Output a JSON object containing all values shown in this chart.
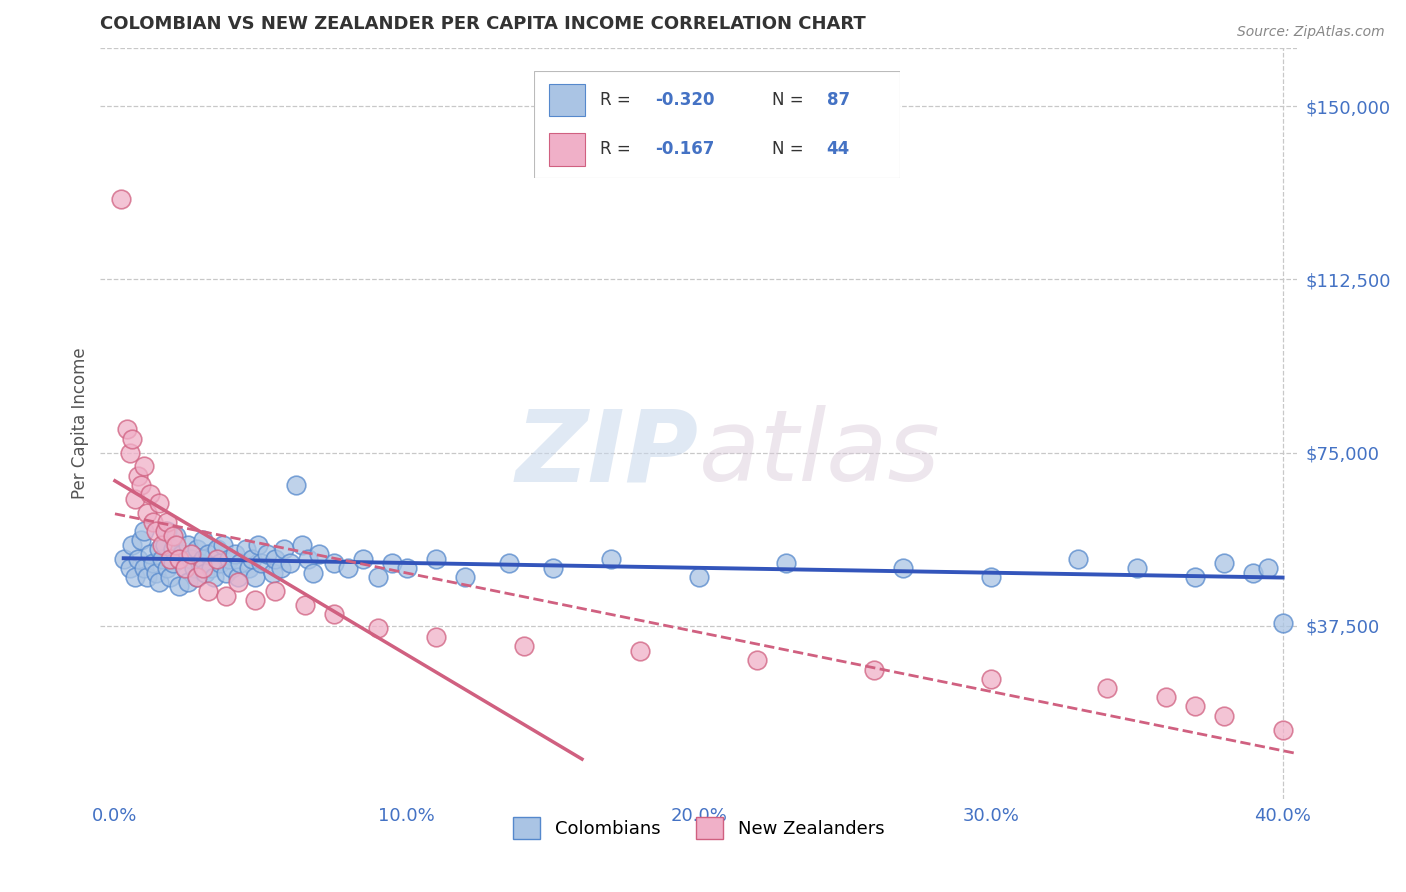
{
  "title": "COLOMBIAN VS NEW ZEALANDER PER CAPITA INCOME CORRELATION CHART",
  "source": "Source: ZipAtlas.com",
  "ylabel": "Per Capita Income",
  "xlim": [
    -0.005,
    0.405
  ],
  "ylim": [
    0,
    162500
  ],
  "yticks": [
    37500,
    75000,
    112500,
    150000
  ],
  "ytick_labels": [
    "$37,500",
    "$75,000",
    "$112,500",
    "$150,000"
  ],
  "xticks": [
    0.0,
    0.1,
    0.2,
    0.3,
    0.4
  ],
  "xtick_labels": [
    "0.0%",
    "10.0%",
    "20.0%",
    "30.0%",
    "40.0%"
  ],
  "background_color": "#ffffff",
  "grid_color": "#c8c8c8",
  "watermark_zip": "ZIP",
  "watermark_atlas": "atlas",
  "colombians_color": "#aac4e4",
  "colombians_edge_color": "#5588cc",
  "nz_color": "#f0b0c8",
  "nz_edge_color": "#d06080",
  "colombians_line_color": "#3355bb",
  "nz_line_color": "#d06080",
  "tick_color": "#4472c4",
  "title_color": "#333333",
  "axis_label_color": "#555555",
  "legend_r_color": "#4472c4",
  "legend1_r": "R = -0.320",
  "legend1_n": "N = 87",
  "legend2_r": "R = -0.167",
  "legend2_n": "N = 44",
  "colombians_x": [
    0.003,
    0.005,
    0.006,
    0.007,
    0.008,
    0.009,
    0.01,
    0.01,
    0.011,
    0.012,
    0.013,
    0.014,
    0.015,
    0.015,
    0.016,
    0.017,
    0.018,
    0.018,
    0.019,
    0.02,
    0.02,
    0.021,
    0.022,
    0.022,
    0.023,
    0.024,
    0.025,
    0.025,
    0.026,
    0.027,
    0.028,
    0.028,
    0.029,
    0.03,
    0.03,
    0.031,
    0.032,
    0.033,
    0.034,
    0.035,
    0.036,
    0.037,
    0.038,
    0.039,
    0.04,
    0.041,
    0.042,
    0.043,
    0.045,
    0.046,
    0.047,
    0.048,
    0.049,
    0.05,
    0.052,
    0.054,
    0.055,
    0.057,
    0.058,
    0.06,
    0.062,
    0.064,
    0.066,
    0.068,
    0.07,
    0.075,
    0.08,
    0.085,
    0.09,
    0.095,
    0.1,
    0.11,
    0.12,
    0.135,
    0.15,
    0.17,
    0.2,
    0.23,
    0.27,
    0.3,
    0.33,
    0.35,
    0.37,
    0.38,
    0.39,
    0.395,
    0.4
  ],
  "colombians_y": [
    52000,
    50000,
    55000,
    48000,
    52000,
    56000,
    50000,
    58000,
    48000,
    53000,
    51000,
    49000,
    54000,
    47000,
    52000,
    55000,
    50000,
    58000,
    48000,
    54000,
    51000,
    57000,
    52000,
    46000,
    53000,
    50000,
    55000,
    47000,
    52000,
    50000,
    54000,
    48000,
    51000,
    52000,
    56000,
    49000,
    53000,
    50000,
    48000,
    54000,
    51000,
    55000,
    49000,
    52000,
    50000,
    53000,
    48000,
    51000,
    54000,
    50000,
    52000,
    48000,
    55000,
    51000,
    53000,
    49000,
    52000,
    50000,
    54000,
    51000,
    68000,
    55000,
    52000,
    49000,
    53000,
    51000,
    50000,
    52000,
    48000,
    51000,
    50000,
    52000,
    48000,
    51000,
    50000,
    52000,
    48000,
    51000,
    50000,
    48000,
    52000,
    50000,
    48000,
    51000,
    49000,
    50000,
    38000
  ],
  "nz_x": [
    0.002,
    0.004,
    0.005,
    0.006,
    0.007,
    0.008,
    0.009,
    0.01,
    0.011,
    0.012,
    0.013,
    0.014,
    0.015,
    0.016,
    0.017,
    0.018,
    0.019,
    0.02,
    0.021,
    0.022,
    0.024,
    0.026,
    0.028,
    0.03,
    0.032,
    0.035,
    0.038,
    0.042,
    0.048,
    0.055,
    0.065,
    0.075,
    0.09,
    0.11,
    0.14,
    0.18,
    0.22,
    0.26,
    0.3,
    0.34,
    0.36,
    0.37,
    0.38,
    0.4
  ],
  "nz_y": [
    130000,
    80000,
    75000,
    78000,
    65000,
    70000,
    68000,
    72000,
    62000,
    66000,
    60000,
    58000,
    64000,
    55000,
    58000,
    60000,
    52000,
    57000,
    55000,
    52000,
    50000,
    53000,
    48000,
    50000,
    45000,
    52000,
    44000,
    47000,
    43000,
    45000,
    42000,
    40000,
    37000,
    35000,
    33000,
    32000,
    30000,
    28000,
    26000,
    24000,
    22000,
    20000,
    18000,
    15000
  ]
}
